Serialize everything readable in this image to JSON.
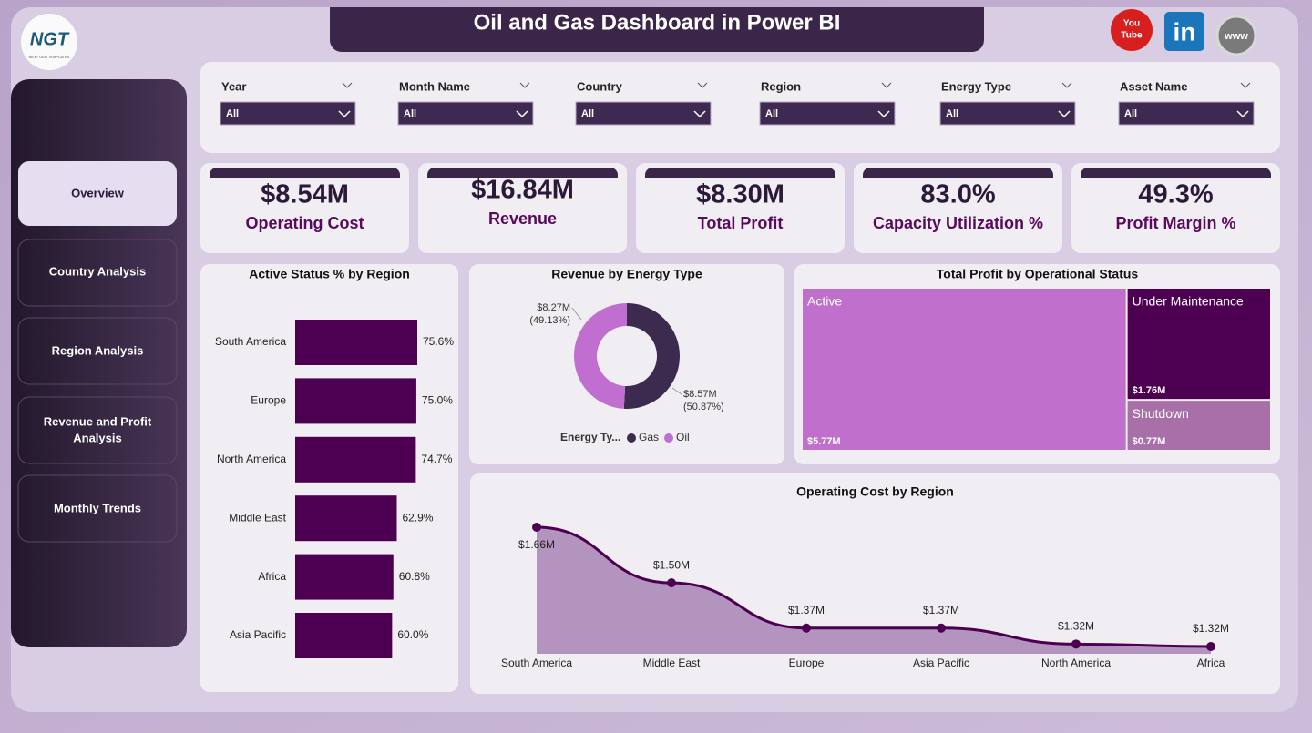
{
  "header": {
    "title": "Oil and Gas Dashboard in Power BI",
    "logo": "NGT",
    "logo_sub": "NEXT GEN TEMPLATES"
  },
  "social": {
    "youtube_top": "You",
    "youtube_bottom": "Tube",
    "linkedin": "in",
    "web": "www"
  },
  "nav": [
    "Overview",
    "Country Analysis",
    "Region Analysis",
    "Revenue and Profit",
    "Analysis",
    "Monthly Trends"
  ],
  "filters": [
    {
      "label": "Year",
      "value": "All"
    },
    {
      "label": "Month Name",
      "value": "All"
    },
    {
      "label": "Country",
      "value": "All"
    },
    {
      "label": "Region",
      "value": "All"
    },
    {
      "label": "Energy Type",
      "value": "All"
    },
    {
      "label": "Asset Name",
      "value": "All"
    }
  ],
  "kpis": [
    {
      "value": "$8.54M",
      "label": "Operating Cost"
    },
    {
      "value": "$16.84M",
      "label": "Revenue"
    },
    {
      "value": "$8.30M",
      "label": "Total Profit"
    },
    {
      "value": "83.0%",
      "label": "Capacity Utilization %"
    },
    {
      "value": "49.3%",
      "label": "Profit Margin %"
    }
  ],
  "chart_data": [
    {
      "type": "hbar",
      "title": "Active Status % by Region",
      "categories": [
        "South America",
        "Europe",
        "North America",
        "Middle East",
        "Africa",
        "Asia Pacific"
      ],
      "values": [
        75.6,
        75.0,
        74.7,
        62.9,
        60.8,
        60.0
      ],
      "value_labels": [
        "75.6%",
        "75.0%",
        "74.7%",
        "62.9%",
        "60.8%",
        "60.0%"
      ],
      "color": "#4d0052"
    },
    {
      "type": "donut",
      "title": "Revenue by Energy Type",
      "categories": [
        "Gas",
        "Oil"
      ],
      "values": [
        8.57,
        8.27
      ],
      "value_labels": [
        "$8.57M",
        "$8.27M"
      ],
      "percent_labels": [
        "(50.87%)",
        "(49.13%)"
      ],
      "colors": [
        "#3d2b4f",
        "#c06fd1"
      ],
      "legend_title": "Energy Ty..."
    },
    {
      "type": "treemap",
      "title": "Total Profit by Operational Status",
      "categories": [
        "Active",
        "Under Maintenance",
        "Shutdown"
      ],
      "values": [
        5.77,
        1.76,
        0.77
      ],
      "value_labels": [
        "$5.77M",
        "$1.76M",
        "$0.77M"
      ],
      "colors": [
        "#c070cc",
        "#4d0052",
        "#a96fa9"
      ]
    },
    {
      "type": "area",
      "title": "Operating Cost by Region",
      "categories": [
        "South America",
        "Middle East",
        "Europe",
        "Asia Pacific",
        "North America",
        "Africa"
      ],
      "values": [
        1.66,
        1.5,
        1.37,
        1.37,
        1.324,
        1.317
      ],
      "value_labels": [
        "$1.66M",
        "$1.50M",
        "$1.37M",
        "$1.37M",
        "$1.32M",
        "$1.32M"
      ],
      "color": "#4d0052",
      "fill": "#b394be"
    }
  ]
}
